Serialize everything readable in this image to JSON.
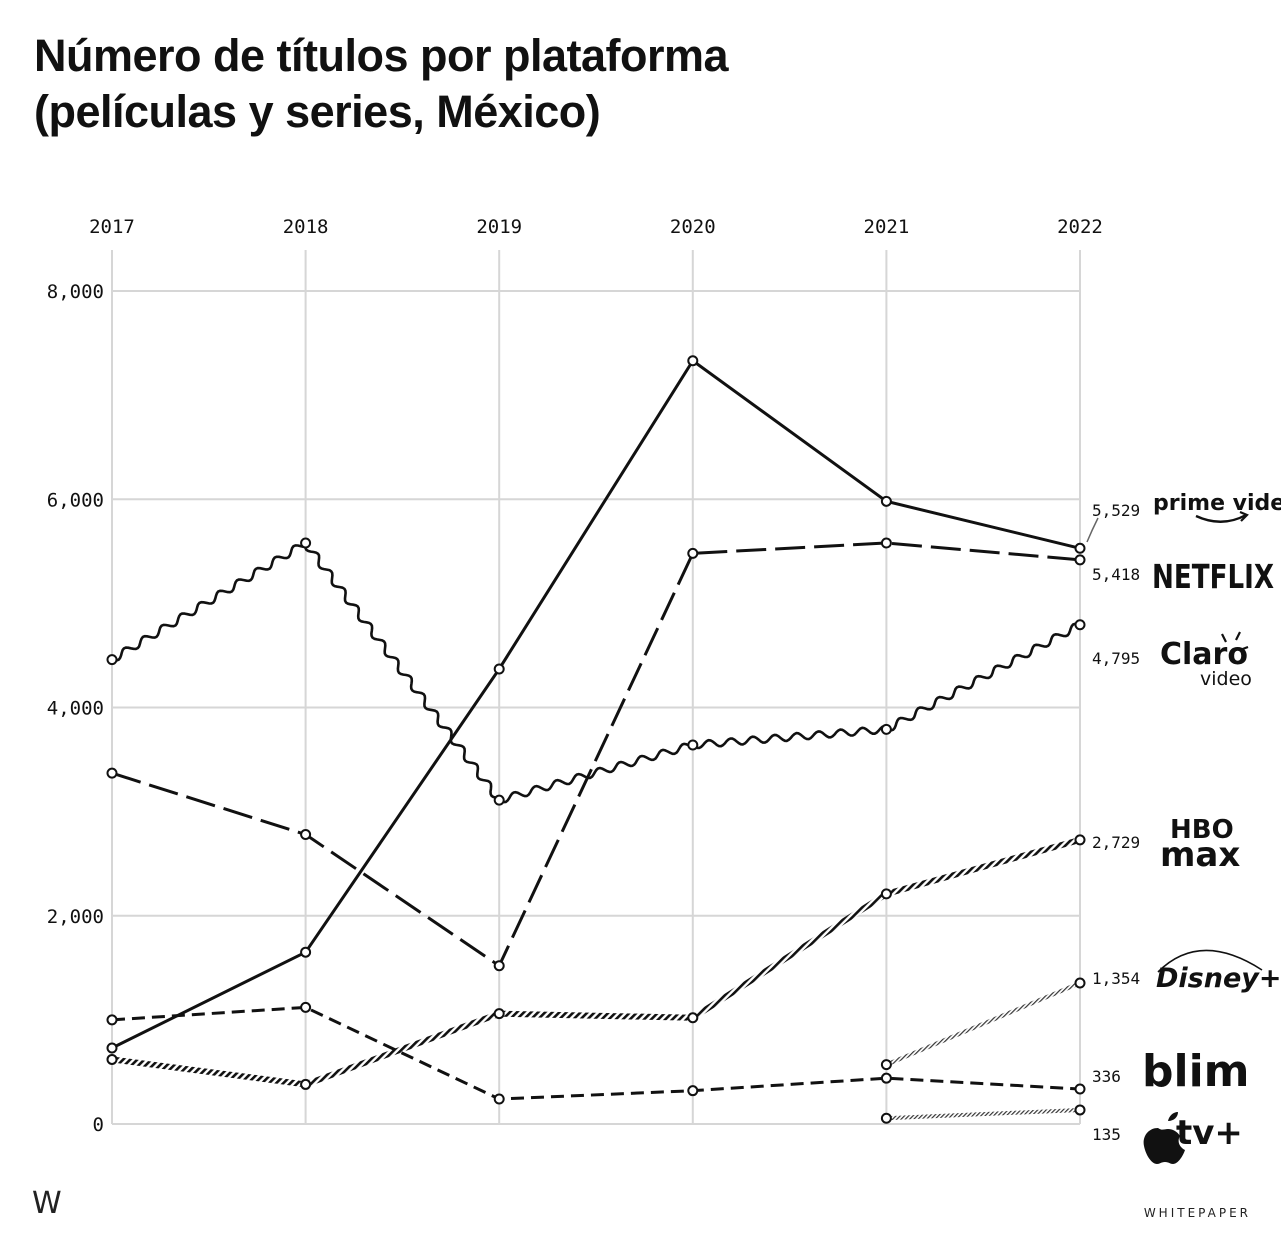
{
  "title_lines": [
    "Número de títulos por plataforma",
    "(películas y series, México)"
  ],
  "footer": {
    "brand_mark": "W",
    "publisher": "WHITEPAPER"
  },
  "chart_data": {
    "type": "line",
    "title": "Número de títulos por plataforma (películas y series, México)",
    "x": [
      2017,
      2018,
      2019,
      2020,
      2021,
      2022
    ],
    "x_tick_labels": [
      "2017",
      "2018",
      "2019",
      "2020",
      "2021",
      "2022"
    ],
    "x_axis_position": "top",
    "ylim": [
      0,
      8000
    ],
    "y_ticks": [
      0,
      2000,
      4000,
      6000,
      8000
    ],
    "y_tick_labels": [
      "0",
      "2,000",
      "4,000",
      "6,000",
      "8,000"
    ],
    "grid": true,
    "legend": "direct labels at right end of lines",
    "series": [
      {
        "name": "prime video",
        "style": "solid",
        "values": [
          730,
          1650,
          4370,
          7330,
          5980,
          5529
        ],
        "end_label": "5,529"
      },
      {
        "name": "NETFLIX",
        "style": "long-dash",
        "values": [
          3370,
          2780,
          1520,
          5480,
          5580,
          5418
        ],
        "end_label": "5,418"
      },
      {
        "name": "Claro video",
        "style": "wavy",
        "values": [
          4460,
          5580,
          3110,
          3640,
          3790,
          4795
        ],
        "end_label": "4,795"
      },
      {
        "name": "HBO max",
        "style": "hatched",
        "values": [
          620,
          380,
          1060,
          1020,
          2210,
          2729
        ],
        "end_label": "2,729"
      },
      {
        "name": "Disney+",
        "style": "fine-dotted",
        "values": [
          null,
          null,
          null,
          null,
          570,
          1354
        ],
        "end_label": "1,354"
      },
      {
        "name": "blim",
        "style": "short-dash",
        "values": [
          1000,
          1120,
          240,
          320,
          440,
          336
        ],
        "end_label": "336"
      },
      {
        "name": "Apple tv+",
        "style": "fine-dotted",
        "values": [
          null,
          null,
          null,
          null,
          55,
          135
        ],
        "end_label": "135"
      }
    ]
  }
}
